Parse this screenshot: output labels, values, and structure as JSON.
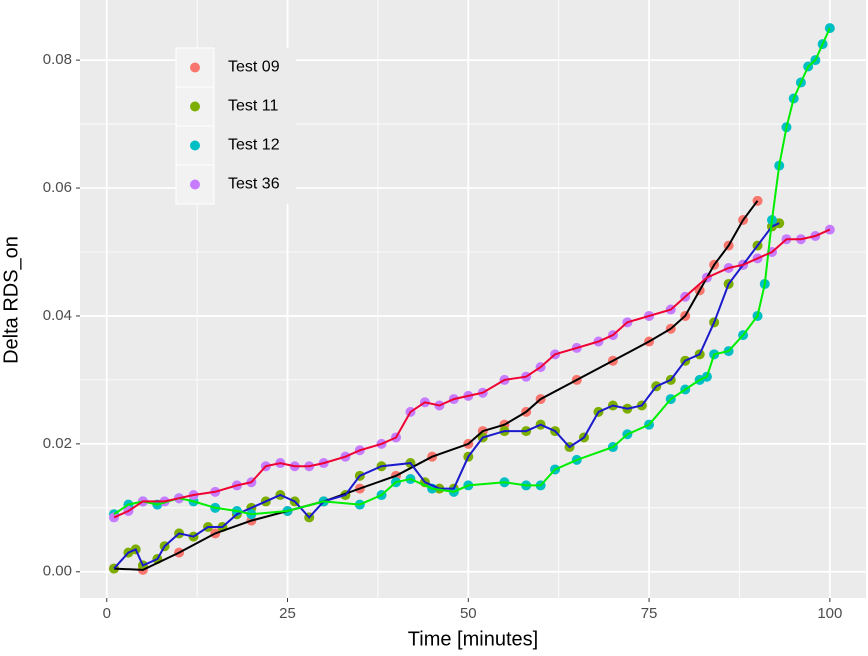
{
  "chart_data": {
    "type": "scatter",
    "x_label": "Time [minutes]",
    "y_label": "Delta RDS_on",
    "xlim": [
      -3.7,
      105
    ],
    "ylim": [
      -0.0041,
      0.0894
    ],
    "xticks": [
      0,
      25,
      50,
      75,
      100
    ],
    "yticks": [
      {
        "value": 0,
        "label": "0.00"
      },
      0.02,
      0.04,
      0.06,
      0.08
    ],
    "grid": true,
    "legend_position": "top-left",
    "series": [
      {
        "name": "Test 09",
        "color": "#F8766D",
        "line_color": "#000000",
        "x": [
          1,
          5,
          10,
          15,
          20,
          25,
          30,
          35,
          40,
          45,
          50,
          52,
          55,
          58,
          60,
          65,
          70,
          75,
          78,
          80,
          82,
          84,
          86,
          88,
          90
        ],
        "values": [
          0.0005,
          0.0003,
          0.003,
          0.006,
          0.008,
          0.0095,
          0.011,
          0.013,
          0.015,
          0.018,
          0.02,
          0.022,
          0.023,
          0.025,
          0.027,
          0.03,
          0.033,
          0.036,
          0.038,
          0.04,
          0.044,
          0.048,
          0.051,
          0.055,
          0.058
        ]
      },
      {
        "name": "Test 11",
        "color": "#7CAE00",
        "line_color": "#1a1acc",
        "x": [
          1,
          3,
          4,
          5,
          7,
          8,
          10,
          12,
          14,
          16,
          18,
          20,
          22,
          24,
          26,
          28,
          30,
          33,
          35,
          38,
          42,
          44,
          46,
          48,
          50,
          52,
          55,
          58,
          60,
          62,
          64,
          66,
          68,
          70,
          72,
          74,
          76,
          78,
          80,
          82,
          84,
          86,
          88,
          90,
          92,
          93
        ],
        "values": [
          0.0005,
          0.003,
          0.0035,
          0.001,
          0.002,
          0.004,
          0.006,
          0.0055,
          0.007,
          0.007,
          0.009,
          0.01,
          0.011,
          0.012,
          0.011,
          0.0085,
          0.011,
          0.012,
          0.015,
          0.0165,
          0.017,
          0.014,
          0.013,
          0.013,
          0.018,
          0.021,
          0.022,
          0.022,
          0.023,
          0.022,
          0.0195,
          0.021,
          0.025,
          0.026,
          0.0255,
          0.026,
          0.029,
          0.03,
          0.033,
          0.034,
          0.039,
          0.045,
          0.048,
          0.051,
          0.054,
          0.0545
        ]
      },
      {
        "name": "Test 12",
        "color": "#00BFC4",
        "line_color": "#00ee00",
        "x": [
          1,
          3,
          5,
          7,
          10,
          12,
          15,
          18,
          20,
          25,
          30,
          35,
          38,
          40,
          42,
          45,
          48,
          50,
          55,
          58,
          60,
          62,
          65,
          70,
          72,
          75,
          78,
          80,
          82,
          83,
          84,
          86,
          88,
          90,
          91,
          92,
          93,
          94,
          95,
          96,
          97,
          98,
          99,
          100
        ],
        "values": [
          0.009,
          0.0105,
          0.011,
          0.0105,
          0.0115,
          0.011,
          0.01,
          0.0095,
          0.009,
          0.0095,
          0.011,
          0.0105,
          0.012,
          0.014,
          0.0145,
          0.013,
          0.0125,
          0.0135,
          0.014,
          0.0135,
          0.0135,
          0.016,
          0.0175,
          0.0195,
          0.0215,
          0.023,
          0.027,
          0.0285,
          0.03,
          0.0305,
          0.034,
          0.0345,
          0.037,
          0.04,
          0.045,
          0.055,
          0.0635,
          0.0695,
          0.074,
          0.0765,
          0.079,
          0.08,
          0.0825,
          0.085
        ]
      },
      {
        "name": "Test 36",
        "color": "#C77CFF",
        "line_color": "#ee0033",
        "x": [
          1,
          3,
          5,
          8,
          10,
          12,
          15,
          18,
          20,
          22,
          24,
          26,
          28,
          30,
          33,
          35,
          38,
          40,
          42,
          44,
          46,
          48,
          50,
          52,
          55,
          58,
          60,
          62,
          65,
          68,
          70,
          72,
          75,
          78,
          80,
          83,
          86,
          88,
          90,
          92,
          94,
          96,
          98,
          100
        ],
        "values": [
          0.0085,
          0.0095,
          0.011,
          0.011,
          0.0115,
          0.012,
          0.0125,
          0.0135,
          0.014,
          0.0165,
          0.017,
          0.0165,
          0.0165,
          0.017,
          0.018,
          0.019,
          0.02,
          0.021,
          0.025,
          0.0265,
          0.026,
          0.027,
          0.0275,
          0.028,
          0.03,
          0.0305,
          0.032,
          0.034,
          0.035,
          0.036,
          0.037,
          0.039,
          0.04,
          0.041,
          0.043,
          0.046,
          0.0475,
          0.048,
          0.049,
          0.05,
          0.052,
          0.052,
          0.0525,
          0.0535
        ]
      }
    ]
  }
}
